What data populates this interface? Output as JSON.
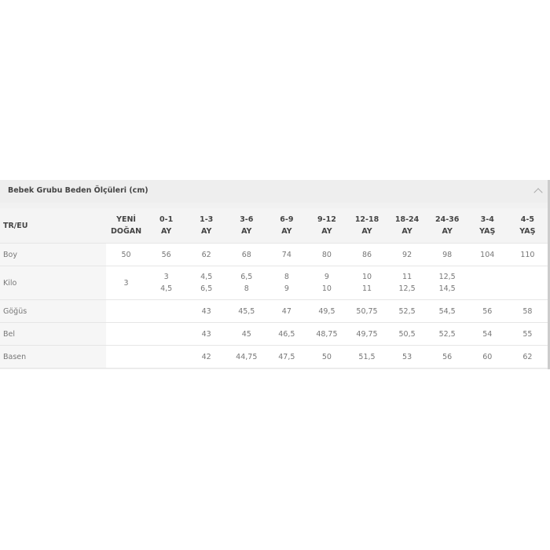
{
  "title": "Bebek Grubu Beden Ölçüleri (cm)",
  "collapse_icon": "chevron-up-icon",
  "table": {
    "corner": "TR/EU",
    "columns": [
      [
        "YENİ",
        "DOĞAN"
      ],
      [
        "0-1",
        "AY"
      ],
      [
        "1-3",
        "AY"
      ],
      [
        "3-6",
        "AY"
      ],
      [
        "6-9",
        "AY"
      ],
      [
        "9-12",
        "AY"
      ],
      [
        "12-18",
        "AY"
      ],
      [
        "18-24",
        "AY"
      ],
      [
        "24-36",
        "AY"
      ],
      [
        "3-4",
        "YAŞ"
      ],
      [
        "4-5",
        "YAŞ"
      ]
    ],
    "rows": [
      {
        "label": "Boy",
        "cells": [
          [
            "50"
          ],
          [
            "56"
          ],
          [
            "62"
          ],
          [
            "68"
          ],
          [
            "74"
          ],
          [
            "80"
          ],
          [
            "86"
          ],
          [
            "92"
          ],
          [
            "98"
          ],
          [
            "104"
          ],
          [
            "110"
          ]
        ]
      },
      {
        "label": "Kilo",
        "cells": [
          [
            "3"
          ],
          [
            "3",
            "4,5"
          ],
          [
            "4,5",
            "6,5"
          ],
          [
            "6,5",
            "8"
          ],
          [
            "8",
            "9"
          ],
          [
            "9",
            "10"
          ],
          [
            "10",
            "11"
          ],
          [
            "11",
            "12,5"
          ],
          [
            "12,5",
            "14,5"
          ],
          [
            ""
          ],
          [
            ""
          ]
        ]
      },
      {
        "label": "Göğüs",
        "cells": [
          [
            ""
          ],
          [
            ""
          ],
          [
            "43"
          ],
          [
            "45,5"
          ],
          [
            "47"
          ],
          [
            "49,5"
          ],
          [
            "50,75"
          ],
          [
            "52,5"
          ],
          [
            "54,5"
          ],
          [
            "56"
          ],
          [
            "58"
          ]
        ]
      },
      {
        "label": "Bel",
        "cells": [
          [
            ""
          ],
          [
            ""
          ],
          [
            "43"
          ],
          [
            "45"
          ],
          [
            "46,5"
          ],
          [
            "48,75"
          ],
          [
            "49,75"
          ],
          [
            "50,5"
          ],
          [
            "52,5"
          ],
          [
            "54"
          ],
          [
            "55"
          ]
        ]
      },
      {
        "label": "Basen",
        "cells": [
          [
            ""
          ],
          [
            ""
          ],
          [
            "42"
          ],
          [
            "44,75"
          ],
          [
            "47,5"
          ],
          [
            "50"
          ],
          [
            "51,5"
          ],
          [
            "53"
          ],
          [
            "56"
          ],
          [
            "60"
          ],
          [
            "62"
          ]
        ]
      }
    ]
  }
}
